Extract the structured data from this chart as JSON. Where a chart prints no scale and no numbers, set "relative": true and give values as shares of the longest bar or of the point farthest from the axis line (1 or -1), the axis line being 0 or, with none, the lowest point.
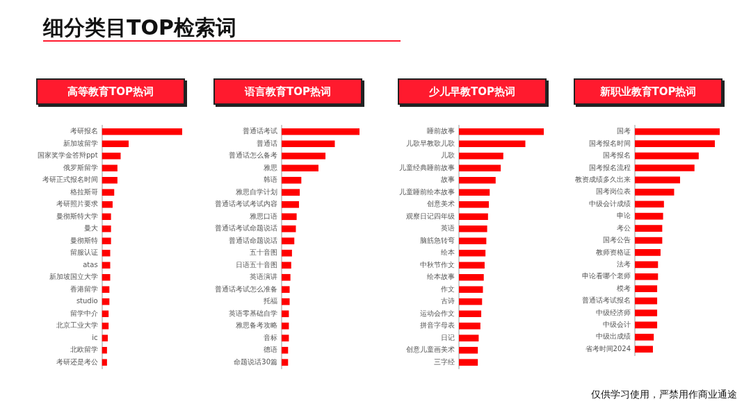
{
  "chart_data": [
    {
      "type": "other",
      "title": "细分类目TOP检索词",
      "annotations": [
        "仅供学习使用，严禁用作商业通途"
      ]
    },
    {
      "type": "bar",
      "orientation": "horizontal",
      "relative": true,
      "title": "高等教育TOP热词",
      "color": "#ff0000",
      "categories": [
        "考研报名",
        "新加坡留学",
        "国家奖学金答辩ppt",
        "俄罗斯留学",
        "考研正式报名时间",
        "格拉斯哥",
        "考研照片要求",
        "曼彻斯特大学",
        "曼大",
        "曼彻斯特",
        "留服认证",
        "atas",
        "新加坡国立大学",
        "香港留学",
        "studio",
        "留学中介",
        "北京工业大学",
        "ic",
        "北欧留学",
        "考研还是考公"
      ],
      "values": [
        1,
        0.33,
        0.23,
        0.19,
        0.19,
        0.15,
        0.13,
        0.11,
        0.11,
        0.11,
        0.1,
        0.1,
        0.1,
        0.09,
        0.09,
        0.08,
        0.08,
        0.07,
        0.06,
        0.06
      ]
    },
    {
      "type": "bar",
      "orientation": "horizontal",
      "relative": true,
      "title": "语言教育TOP热词",
      "color": "#ff0000",
      "categories": [
        "普通话考试",
        "普通话",
        "普通话怎么备考",
        "雅思",
        "韩语",
        "雅思自学计划",
        "普通话考试考试内容",
        "雅思口语",
        "普通话考试命题说话",
        "普通话命题说话",
        "五十音图",
        "日语五十音图",
        "英语演讲",
        "普通话考试怎么准备",
        "托福",
        "英语零基础自学",
        "雅思备考攻略",
        "音标",
        "德语",
        "命题说话30篇"
      ],
      "values": [
        1,
        0.68,
        0.56,
        0.47,
        0.25,
        0.23,
        0.22,
        0.19,
        0.18,
        0.16,
        0.13,
        0.12,
        0.11,
        0.1,
        0.1,
        0.09,
        0.09,
        0.09,
        0.08,
        0.08
      ]
    },
    {
      "type": "bar",
      "orientation": "horizontal",
      "relative": true,
      "title": "少儿早教TOP热词",
      "color": "#ff0000",
      "categories": [
        "睡前故事",
        "儿歌早教歌儿歌",
        "儿歌",
        "儿童经典睡前故事",
        "故事",
        "儿童睡前绘本故事",
        "创意美术",
        "观察日记四年级",
        "英语",
        "脑筋急转弯",
        "绘本",
        "中秋节作文",
        "绘本故事",
        "作文",
        "古诗",
        "运动会作文",
        "拼音字母表",
        "日记",
        "创意儿童画美术",
        "三字经"
      ],
      "values": [
        1,
        0.78,
        0.52,
        0.49,
        0.43,
        0.36,
        0.35,
        0.34,
        0.33,
        0.32,
        0.31,
        0.3,
        0.29,
        0.28,
        0.27,
        0.26,
        0.25,
        0.23,
        0.22,
        0.22
      ]
    },
    {
      "type": "bar",
      "orientation": "horizontal",
      "relative": true,
      "title": "新职业教育TOP热词",
      "color": "#ff0000",
      "categories": [
        "国考",
        "国考报名时间",
        "国考报名",
        "国考报名流程",
        "教资成绩多久出来",
        "国考岗位表",
        "中级会计成绩",
        "申论",
        "考公",
        "国考公告",
        "教师资格证",
        "法考",
        "申论看哪个老师",
        "模考",
        "普通话考试报名",
        "中级经济师",
        "中级会计",
        "中级出成绩",
        "省考时间2024"
      ],
      "values": [
        1,
        0.94,
        0.75,
        0.7,
        0.53,
        0.46,
        0.34,
        0.33,
        0.32,
        0.32,
        0.3,
        0.27,
        0.27,
        0.26,
        0.26,
        0.26,
        0.26,
        0.22,
        0.21
      ]
    }
  ]
}
